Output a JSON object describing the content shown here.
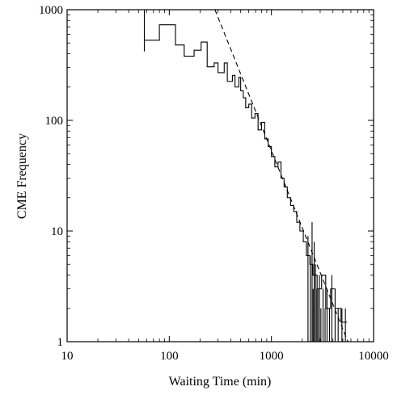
{
  "chart_data": {
    "type": "line",
    "title": "",
    "xlabel": "Waiting Time (min)",
    "ylabel": "CME Frequency",
    "xscale": "log",
    "yscale": "log",
    "xlim": [
      10,
      10000
    ],
    "ylim": [
      1,
      1000
    ],
    "x_ticks": [
      "10",
      "100",
      "1000",
      "10000"
    ],
    "y_ticks": [
      "1",
      "10",
      "100",
      "1000"
    ],
    "grid": false,
    "legend": "none",
    "series": [
      {
        "style": "step",
        "color": "#000000",
        "points": [
          [
            57,
            530
          ],
          [
            80,
            530
          ],
          [
            80,
            730
          ],
          [
            115,
            730
          ],
          [
            115,
            480
          ],
          [
            140,
            480
          ],
          [
            140,
            380
          ],
          [
            175,
            380
          ],
          [
            175,
            430
          ],
          [
            205,
            430
          ],
          [
            205,
            510
          ],
          [
            235,
            510
          ],
          [
            235,
            305
          ],
          [
            275,
            305
          ],
          [
            275,
            330
          ],
          [
            300,
            330
          ],
          [
            300,
            270
          ],
          [
            345,
            270
          ],
          [
            345,
            330
          ],
          [
            370,
            330
          ],
          [
            370,
            225
          ],
          [
            415,
            225
          ],
          [
            415,
            255
          ],
          [
            440,
            255
          ],
          [
            440,
            200
          ],
          [
            480,
            200
          ],
          [
            480,
            245
          ],
          [
            500,
            245
          ],
          [
            500,
            185
          ],
          [
            530,
            185
          ],
          [
            530,
            160
          ],
          [
            560,
            160
          ],
          [
            560,
            130
          ],
          [
            600,
            130
          ],
          [
            600,
            140
          ],
          [
            640,
            140
          ],
          [
            640,
            105
          ],
          [
            690,
            105
          ],
          [
            690,
            115
          ],
          [
            740,
            115
          ],
          [
            740,
            82
          ],
          [
            800,
            82
          ],
          [
            800,
            96
          ],
          [
            860,
            96
          ],
          [
            860,
            68
          ],
          [
            930,
            68
          ],
          [
            930,
            58
          ],
          [
            1000,
            58
          ],
          [
            1000,
            47
          ],
          [
            1080,
            47
          ],
          [
            1080,
            38
          ],
          [
            1160,
            38
          ],
          [
            1160,
            42
          ],
          [
            1240,
            42
          ],
          [
            1240,
            30
          ],
          [
            1330,
            30
          ],
          [
            1330,
            25
          ],
          [
            1430,
            25
          ],
          [
            1430,
            20
          ],
          [
            1540,
            20
          ],
          [
            1540,
            17
          ],
          [
            1650,
            17
          ],
          [
            1650,
            15
          ],
          [
            1770,
            15
          ],
          [
            1770,
            12
          ],
          [
            1900,
            12
          ],
          [
            1900,
            10
          ],
          [
            2050,
            10
          ],
          [
            2050,
            8
          ],
          [
            2200,
            8
          ],
          [
            2200,
            6
          ],
          [
            2380,
            6
          ],
          [
            2380,
            5
          ],
          [
            2550,
            5
          ],
          [
            2550,
            4
          ],
          [
            2800,
            4
          ],
          [
            2800,
            3
          ],
          [
            3100,
            3
          ],
          [
            3100,
            4
          ],
          [
            3400,
            4
          ],
          [
            3400,
            2
          ],
          [
            3800,
            2
          ],
          [
            3800,
            3
          ],
          [
            4200,
            3
          ],
          [
            4200,
            2
          ],
          [
            4800,
            2
          ],
          [
            4800,
            1.5
          ],
          [
            5500,
            1.5
          ]
        ]
      },
      {
        "style": "vlines",
        "color": "#000000",
        "points": [
          [
            57,
            420,
            1000
          ],
          [
            2280,
            1,
            9
          ],
          [
            2400,
            1,
            6
          ],
          [
            2500,
            1,
            12
          ],
          [
            2560,
            1,
            3
          ],
          [
            2620,
            1,
            8
          ],
          [
            2700,
            1,
            5
          ],
          [
            2780,
            1,
            3
          ],
          [
            2850,
            1,
            3
          ],
          [
            2950,
            1,
            4
          ],
          [
            3050,
            1,
            2
          ],
          [
            3200,
            1,
            3
          ],
          [
            3350,
            1,
            2
          ],
          [
            3500,
            1,
            3
          ],
          [
            3700,
            1,
            2
          ],
          [
            3900,
            1,
            4
          ],
          [
            4200,
            1,
            2
          ],
          [
            4500,
            1,
            2
          ],
          [
            4900,
            1,
            2
          ],
          [
            5300,
            1,
            2
          ]
        ]
      },
      {
        "style": "dashed",
        "color": "#000000",
        "points": [
          [
            280,
            1000
          ],
          [
            5600,
            1
          ]
        ]
      }
    ]
  }
}
